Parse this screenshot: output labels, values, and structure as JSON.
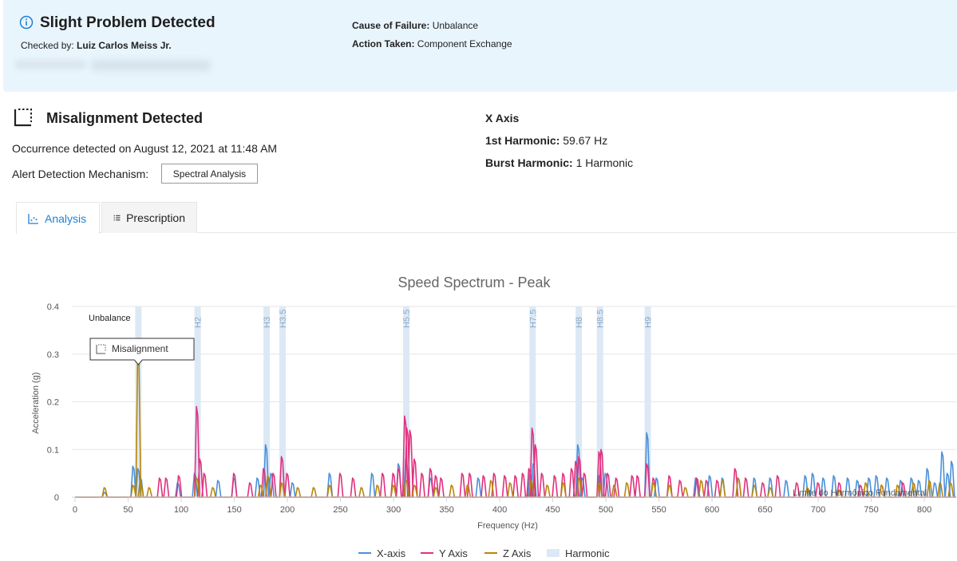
{
  "banner": {
    "title": "Slight Problem Detected",
    "checked_label": "Checked by:",
    "checked_value": "Luiz Carlos Meiss Jr.",
    "cause_label": "Cause of Failure:",
    "cause_value": "Unbalance",
    "action_label": "Action Taken:",
    "action_value": "Component Exchange",
    "bg_color": "#e9f5fd",
    "icon": "info-icon"
  },
  "alert": {
    "title": "Misalignment Detected",
    "occurrence": "Occurrence detected on August 12, 2021 at 11:48 AM",
    "mechanism_label": "Alert Detection Mechanism:",
    "mechanism_button": "Spectral Analysis",
    "icon": "misalignment-icon"
  },
  "axis_info": {
    "title": "X Axis",
    "first_harmonic_label": "1st Harmonic:",
    "first_harmonic_value": "59.67 Hz",
    "burst_label": "Burst Harmonic:",
    "burst_value": "1 Harmonic"
  },
  "tabs": [
    {
      "label": "Analysis",
      "active": true,
      "icon": "chart-icon"
    },
    {
      "label": "Prescription",
      "active": false,
      "icon": "list-icon"
    }
  ],
  "colors": {
    "x_axis": "#4a90d9",
    "y_axis": "#e0317e",
    "z_axis": "#b8860b",
    "harmonic": "#dce9f5",
    "accent": "#1f7fd6"
  },
  "chart_data": {
    "type": "line",
    "title": "Speed Spectrum - Peak",
    "xlabel": "Frequency (Hz)",
    "ylabel": "Acceleration (g)",
    "xlim": [
      -3,
      830
    ],
    "ylim": [
      0,
      0.4
    ],
    "x_ticks": [
      0,
      50,
      100,
      150,
      200,
      250,
      300,
      350,
      400,
      450,
      500,
      550,
      600,
      650,
      700,
      750,
      800
    ],
    "y_ticks": [
      0,
      0.1,
      0.2,
      0.3,
      0.4
    ],
    "y_tick_labels": [
      "0",
      "0.1",
      "0.2",
      "0.3",
      "0.4"
    ],
    "grid": true,
    "legend_position": "bottom",
    "harmonic_bands": [
      {
        "label": "",
        "x": 59.67
      },
      {
        "label": "H2",
        "x": 115.5
      },
      {
        "label": "H3",
        "x": 180.5
      },
      {
        "label": "H3.5",
        "x": 195.5
      },
      {
        "label": "H5.5",
        "x": 312
      },
      {
        "label": "H7.5",
        "x": 431
      },
      {
        "label": "H8",
        "x": 474.5
      },
      {
        "label": "H8.5",
        "x": 494.5
      },
      {
        "label": "H9",
        "x": 539.5
      }
    ],
    "annotations": [
      {
        "text": "Unbalance",
        "x": 60,
        "y": 0.38
      },
      {
        "text": "Misalignment",
        "x": 59.67,
        "y": 0.29
      }
    ],
    "footer_text": "Limite do Harmônico Fundamental",
    "series": [
      {
        "name": "X-axis",
        "color_key": "x_axis",
        "peaks": [
          [
            28,
            0.01
          ],
          [
            55,
            0.065
          ],
          [
            59.67,
            0.06
          ],
          [
            62,
            0.04
          ],
          [
            97,
            0.03
          ],
          [
            113,
            0.05
          ],
          [
            135,
            0.035
          ],
          [
            150,
            0.04
          ],
          [
            172,
            0.04
          ],
          [
            180,
            0.11
          ],
          [
            185,
            0.05
          ],
          [
            205,
            0.03
          ],
          [
            240,
            0.05
          ],
          [
            280,
            0.05
          ],
          [
            305,
            0.07
          ],
          [
            312,
            0.08
          ],
          [
            335,
            0.04
          ],
          [
            380,
            0.04
          ],
          [
            429,
            0.05
          ],
          [
            432,
            0.07
          ],
          [
            474,
            0.11
          ],
          [
            478,
            0.04
          ],
          [
            494,
            0.045
          ],
          [
            500,
            0.05
          ],
          [
            539,
            0.135
          ],
          [
            548,
            0.04
          ],
          [
            585,
            0.04
          ],
          [
            598,
            0.045
          ],
          [
            610,
            0.04
          ],
          [
            625,
            0.04
          ],
          [
            640,
            0.04
          ],
          [
            655,
            0.04
          ],
          [
            670,
            0.035
          ],
          [
            688,
            0.045
          ],
          [
            695,
            0.05
          ],
          [
            705,
            0.04
          ],
          [
            715,
            0.045
          ],
          [
            728,
            0.04
          ],
          [
            737,
            0.035
          ],
          [
            748,
            0.04
          ],
          [
            755,
            0.045
          ],
          [
            765,
            0.04
          ],
          [
            778,
            0.035
          ],
          [
            788,
            0.04
          ],
          [
            795,
            0.035
          ],
          [
            803,
            0.06
          ],
          [
            810,
            0.03
          ],
          [
            817,
            0.095
          ],
          [
            822,
            0.05
          ],
          [
            826,
            0.075
          ]
        ]
      },
      {
        "name": "Y Axis",
        "color_key": "y_axis",
        "peaks": [
          [
            80,
            0.04
          ],
          [
            86,
            0.04
          ],
          [
            98,
            0.045
          ],
          [
            115,
            0.19
          ],
          [
            118,
            0.08
          ],
          [
            122,
            0.05
          ],
          [
            150,
            0.05
          ],
          [
            165,
            0.03
          ],
          [
            178,
            0.06
          ],
          [
            187,
            0.05
          ],
          [
            195,
            0.085
          ],
          [
            200,
            0.05
          ],
          [
            250,
            0.05
          ],
          [
            262,
            0.04
          ],
          [
            290,
            0.05
          ],
          [
            300,
            0.05
          ],
          [
            305,
            0.06
          ],
          [
            311,
            0.17
          ],
          [
            313,
            0.145
          ],
          [
            316,
            0.14
          ],
          [
            320,
            0.08
          ],
          [
            327,
            0.05
          ],
          [
            335,
            0.06
          ],
          [
            340,
            0.045
          ],
          [
            345,
            0.04
          ],
          [
            365,
            0.05
          ],
          [
            372,
            0.05
          ],
          [
            385,
            0.045
          ],
          [
            395,
            0.05
          ],
          [
            405,
            0.045
          ],
          [
            415,
            0.045
          ],
          [
            422,
            0.05
          ],
          [
            428,
            0.06
          ],
          [
            431,
            0.145
          ],
          [
            434,
            0.11
          ],
          [
            440,
            0.05
          ],
          [
            452,
            0.045
          ],
          [
            460,
            0.05
          ],
          [
            468,
            0.06
          ],
          [
            472,
            0.075
          ],
          [
            475,
            0.085
          ],
          [
            480,
            0.05
          ],
          [
            494,
            0.095
          ],
          [
            496,
            0.1
          ],
          [
            502,
            0.05
          ],
          [
            510,
            0.04
          ],
          [
            525,
            0.045
          ],
          [
            530,
            0.045
          ],
          [
            539,
            0.07
          ],
          [
            545,
            0.04
          ],
          [
            560,
            0.045
          ],
          [
            570,
            0.035
          ],
          [
            586,
            0.04
          ],
          [
            595,
            0.035
          ],
          [
            605,
            0.035
          ],
          [
            622,
            0.06
          ],
          [
            632,
            0.04
          ],
          [
            648,
            0.03
          ],
          [
            662,
            0.045
          ],
          [
            680,
            0.03
          ],
          [
            700,
            0.03
          ],
          [
            720,
            0.03
          ],
          [
            740,
            0.025
          ],
          [
            760,
            0.025
          ],
          [
            780,
            0.03
          ]
        ]
      },
      {
        "name": "Z Axis",
        "color_key": "z_axis",
        "peaks": [
          [
            28,
            0.02
          ],
          [
            55,
            0.025
          ],
          [
            59.67,
            0.31
          ],
          [
            62,
            0.03
          ],
          [
            70,
            0.02
          ],
          [
            115,
            0.04
          ],
          [
            130,
            0.02
          ],
          [
            175,
            0.025
          ],
          [
            182,
            0.045
          ],
          [
            195,
            0.03
          ],
          [
            210,
            0.02
          ],
          [
            225,
            0.02
          ],
          [
            240,
            0.025
          ],
          [
            270,
            0.02
          ],
          [
            285,
            0.025
          ],
          [
            300,
            0.025
          ],
          [
            312,
            0.035
          ],
          [
            320,
            0.025
          ],
          [
            340,
            0.02
          ],
          [
            355,
            0.025
          ],
          [
            370,
            0.025
          ],
          [
            392,
            0.035
          ],
          [
            410,
            0.03
          ],
          [
            430,
            0.035
          ],
          [
            445,
            0.025
          ],
          [
            460,
            0.03
          ],
          [
            475,
            0.04
          ],
          [
            494,
            0.03
          ],
          [
            508,
            0.025
          ],
          [
            520,
            0.03
          ],
          [
            545,
            0.03
          ],
          [
            560,
            0.025
          ],
          [
            575,
            0.02
          ],
          [
            590,
            0.035
          ],
          [
            610,
            0.035
          ],
          [
            625,
            0.04
          ],
          [
            640,
            0.025
          ],
          [
            655,
            0.02
          ],
          [
            690,
            0.02
          ],
          [
            720,
            0.015
          ],
          [
            745,
            0.03
          ],
          [
            760,
            0.025
          ],
          [
            775,
            0.025
          ],
          [
            790,
            0.03
          ],
          [
            805,
            0.035
          ],
          [
            815,
            0.03
          ],
          [
            825,
            0.03
          ]
        ]
      },
      {
        "name": "Harmonic",
        "color_key": "harmonic"
      }
    ]
  }
}
